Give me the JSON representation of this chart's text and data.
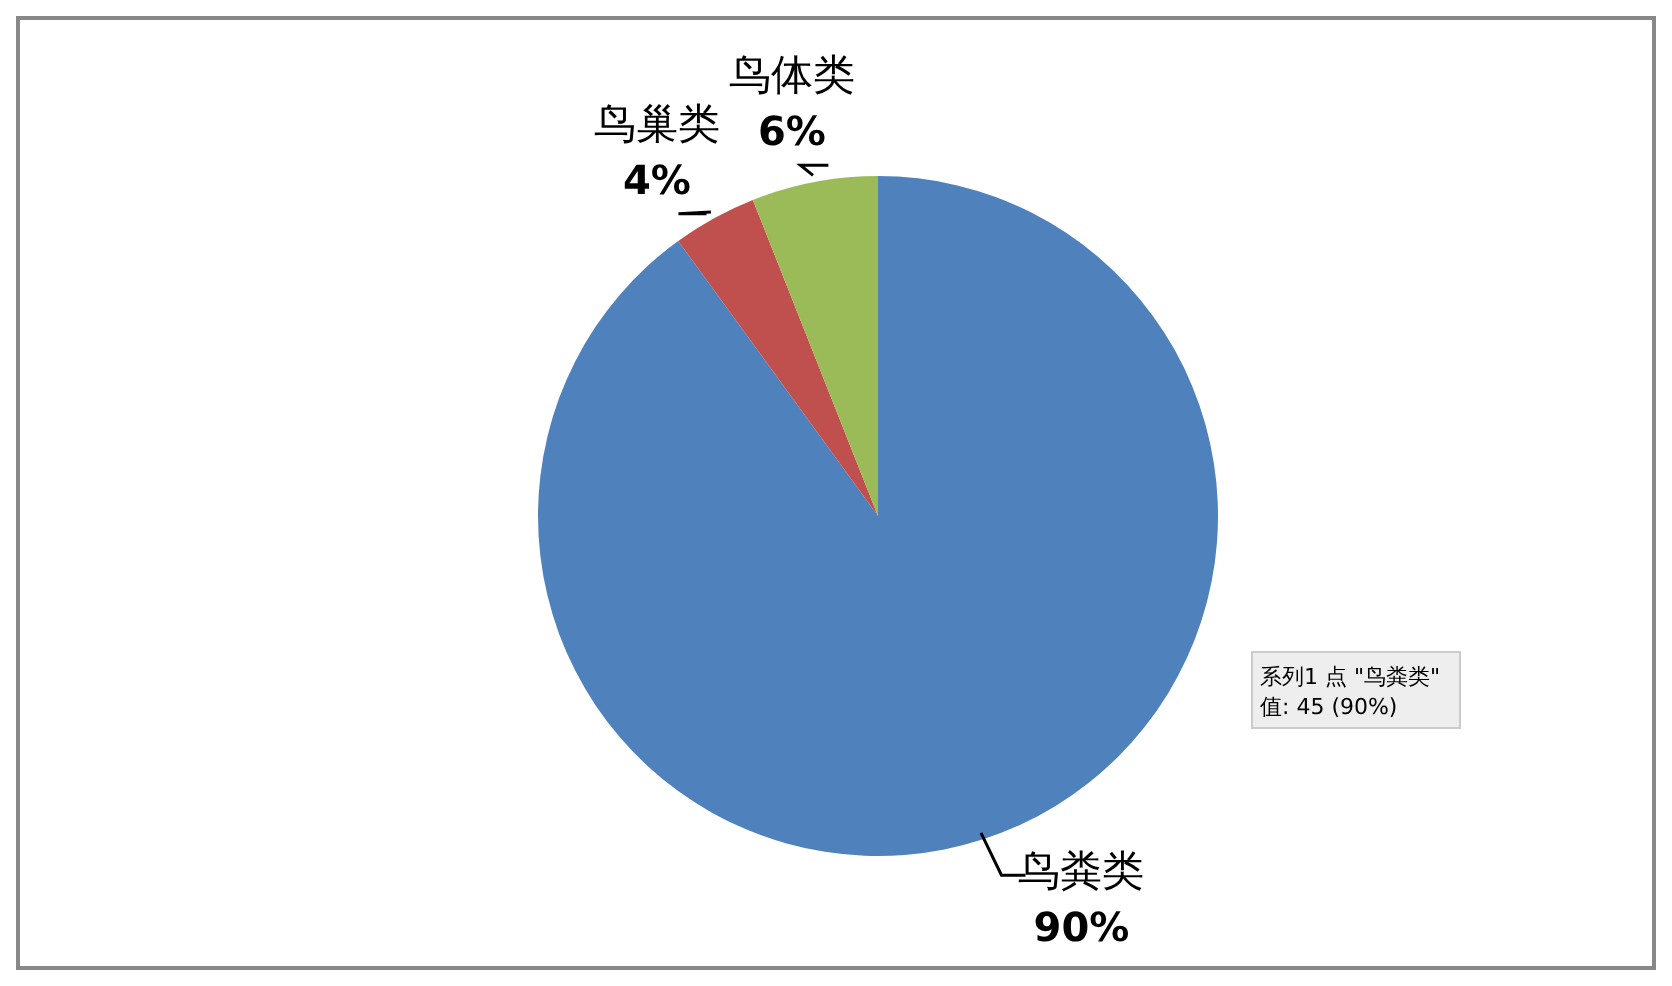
{
  "chart_data": {
    "type": "pie",
    "categories": [
      "鸟粪类",
      "鸟巢类",
      "鸟体类"
    ],
    "values": [
      90,
      4,
      6
    ],
    "colors": [
      "#4f81bd",
      "#c0504d",
      "#9bbb59"
    ],
    "value_labels": [
      "90%",
      "4%",
      "6%"
    ],
    "annotations": [
      "系列1 点 \"鸟粪类\"\n值: 45 (90%)"
    ],
    "legend": false
  }
}
